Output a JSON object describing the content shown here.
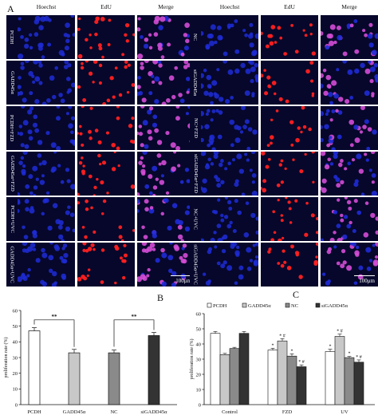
{
  "panel_labels": {
    "a": "A",
    "b": "B",
    "c": "C"
  },
  "microscopy": {
    "column_headers": [
      "Hoechst",
      "EdU",
      "Merge"
    ],
    "left_rows": [
      "PCDH",
      "GADD45α",
      "PCDH+FZD",
      "GADD45α+FZD",
      "PCDH+UVC",
      "GADD45α+UVC"
    ],
    "right_rows": [
      "NC",
      "siGADD45α",
      "NC+FZD",
      "siGADD45α+FZD",
      "NC+UVC",
      "siGADD45α+UVC"
    ],
    "scale_bar": "100μm",
    "colors": {
      "hoechst": "#1f2bd6",
      "edu": "#ff2020",
      "merge": "#d44dd6",
      "background": "#06072b"
    }
  },
  "chart_data": [
    {
      "type": "bar",
      "panel": "B",
      "categories": [
        "PCDH",
        "GADD45α",
        "NC",
        "siGADD45α"
      ],
      "values": [
        47,
        33,
        33,
        44
      ],
      "errors": [
        2,
        2.2,
        1.8,
        2
      ],
      "fills": [
        "#ffffff",
        "#c8c8c8",
        "#8a8a8a",
        "#333333"
      ],
      "ylabel": "proliferation rate (%)",
      "ylim": [
        0,
        60
      ],
      "yticks": [
        0,
        10,
        20,
        30,
        40,
        50,
        60
      ],
      "significance": [
        {
          "from": 0,
          "to": 1,
          "label": "**"
        },
        {
          "from": 2,
          "to": 3,
          "label": "**"
        }
      ]
    },
    {
      "type": "bar",
      "panel": "C",
      "categories": [
        "Control",
        "FZD",
        "UV"
      ],
      "series": [
        {
          "name": "PCDH",
          "fill": "#ffffff",
          "values": [
            47,
            36,
            35
          ],
          "errors": [
            1.2,
            1.2,
            1.5
          ],
          "marks": [
            "",
            "*",
            "*"
          ]
        },
        {
          "name": "GADD45α",
          "fill": "#c8c8c8",
          "values": [
            33,
            42,
            45
          ],
          "errors": [
            0.8,
            1.5,
            1.5
          ],
          "marks": [
            "",
            "* #",
            "* #"
          ]
        },
        {
          "name": "NC",
          "fill": "#8a8a8a",
          "values": [
            37,
            32,
            31
          ],
          "errors": [
            0.8,
            1.5,
            0.8
          ],
          "marks": [
            "",
            "*",
            "*"
          ]
        },
        {
          "name": "siGADD45α",
          "fill": "#333333",
          "values": [
            47,
            25,
            28
          ],
          "errors": [
            1.2,
            1.2,
            1.5
          ],
          "marks": [
            "",
            "* #",
            "* #"
          ]
        }
      ],
      "ylabel": "proliferation rate (%)",
      "ylim": [
        0,
        60
      ],
      "yticks": [
        0,
        10,
        20,
        30,
        40,
        50,
        60
      ],
      "legend_position": "top"
    }
  ]
}
